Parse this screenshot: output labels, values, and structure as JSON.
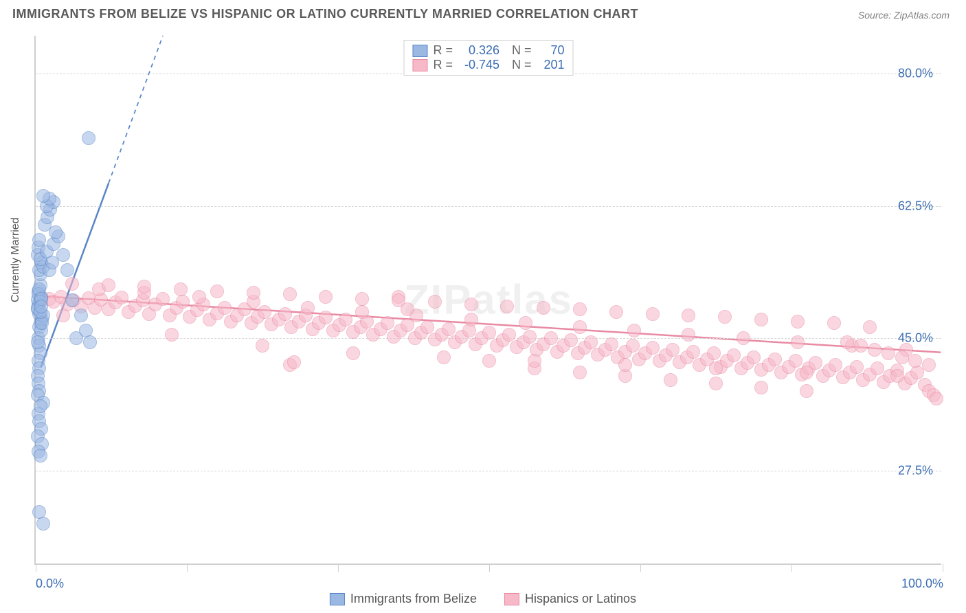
{
  "title": "IMMIGRANTS FROM BELIZE VS HISPANIC OR LATINO CURRENTLY MARRIED CORRELATION CHART",
  "source": "Source: ZipAtlas.com",
  "watermark": "ZIPatlas",
  "ylabel": "Currently Married",
  "chart": {
    "type": "scatter",
    "background_color": "#ffffff",
    "grid_color": "#d8d8d8",
    "axis_color": "#cfcfcf",
    "tick_color": "#3b6db4",
    "xlim": [
      0,
      100
    ],
    "ylim": [
      15,
      85
    ],
    "xticks": [
      0,
      16.67,
      33.33,
      50,
      66.67,
      83.33,
      100
    ],
    "xtick_labels_shown": {
      "0": "0.0%",
      "100": "100.0%"
    },
    "yticks": [
      27.5,
      45.0,
      62.5,
      80.0
    ],
    "ytick_labels": [
      "27.5%",
      "45.0%",
      "62.5%",
      "80.0%"
    ],
    "marker_radius": 10,
    "marker_opacity": 0.55,
    "marker_stroke_width": 1.5
  },
  "series": {
    "belize": {
      "label": "Immigrants from Belize",
      "fill_color": "#9bb8e3",
      "stroke_color": "#5a86c7",
      "R": "0.326",
      "N": "70",
      "trend": {
        "x1": 0.5,
        "y1": 41,
        "x2": 14,
        "y2": 85,
        "dash_from_x": 8,
        "width": 2.5
      },
      "points": [
        [
          0.3,
          49.5
        ],
        [
          0.4,
          48.2
        ],
        [
          0.2,
          50.1
        ],
        [
          0.5,
          47.0
        ],
        [
          0.3,
          51.2
        ],
        [
          0.4,
          46.5
        ],
        [
          0.2,
          48.8
        ],
        [
          0.6,
          50.5
        ],
        [
          0.3,
          45.0
        ],
        [
          0.5,
          52.0
        ],
        [
          0.4,
          44.0
        ],
        [
          0.2,
          49.0
        ],
        [
          0.7,
          47.5
        ],
        [
          0.3,
          50.8
        ],
        [
          0.5,
          43.0
        ],
        [
          0.4,
          51.5
        ],
        [
          0.6,
          46.0
        ],
        [
          0.2,
          44.5
        ],
        [
          0.8,
          48.0
        ],
        [
          0.3,
          42.0
        ],
        [
          0.5,
          49.8
        ],
        [
          0.4,
          41.0
        ],
        [
          0.6,
          50.2
        ],
        [
          0.2,
          40.0
        ],
        [
          0.7,
          47.0
        ],
        [
          0.3,
          39.0
        ],
        [
          0.5,
          48.5
        ],
        [
          0.4,
          38.0
        ],
        [
          0.6,
          49.2
        ],
        [
          0.2,
          37.5
        ],
        [
          0.8,
          36.5
        ],
        [
          0.3,
          35.0
        ],
        [
          0.5,
          36.0
        ],
        [
          0.4,
          34.0
        ],
        [
          0.6,
          33.0
        ],
        [
          0.2,
          32.0
        ],
        [
          0.7,
          31.0
        ],
        [
          0.3,
          30.0
        ],
        [
          0.5,
          53.5
        ],
        [
          0.4,
          54.0
        ],
        [
          0.6,
          55.0
        ],
        [
          0.2,
          56.0
        ],
        [
          0.8,
          54.5
        ],
        [
          0.3,
          57.0
        ],
        [
          0.5,
          55.5
        ],
        [
          0.4,
          58.0
        ],
        [
          1.2,
          56.5
        ],
        [
          1.5,
          54.0
        ],
        [
          2.0,
          57.5
        ],
        [
          1.8,
          55.0
        ],
        [
          2.5,
          58.5
        ],
        [
          3.0,
          56.0
        ],
        [
          2.2,
          59.0
        ],
        [
          1.0,
          60.0
        ],
        [
          1.3,
          61.0
        ],
        [
          1.6,
          62.0
        ],
        [
          2.0,
          63.0
        ],
        [
          1.2,
          62.5
        ],
        [
          1.5,
          63.5
        ],
        [
          0.8,
          63.8
        ],
        [
          3.5,
          54.0
        ],
        [
          4.0,
          50.0
        ],
        [
          4.5,
          45.0
        ],
        [
          5.0,
          48.0
        ],
        [
          5.5,
          46.0
        ],
        [
          6.0,
          44.5
        ],
        [
          5.8,
          71.5
        ],
        [
          0.4,
          22.0
        ],
        [
          0.8,
          20.5
        ],
        [
          0.5,
          29.5
        ]
      ]
    },
    "hispanic": {
      "label": "Hispanics or Latinos",
      "fill_color": "#f7b8c8",
      "stroke_color": "#e88aa3",
      "R": "-0.745",
      "N": "201",
      "trend": {
        "x1": 0,
        "y1": 50.5,
        "x2": 100,
        "y2": 43.0,
        "width": 2.5
      },
      "points": [
        [
          1.5,
          50.2
        ],
        [
          2.0,
          49.8
        ],
        [
          2.8,
          50.5
        ],
        [
          3.5,
          49.5
        ],
        [
          4.2,
          50.0
        ],
        [
          5.0,
          49.2
        ],
        [
          5.8,
          50.3
        ],
        [
          6.5,
          49.0
        ],
        [
          7.2,
          50.1
        ],
        [
          8.0,
          48.8
        ],
        [
          8.8,
          49.7
        ],
        [
          9.5,
          50.4
        ],
        [
          10.2,
          48.5
        ],
        [
          11.0,
          49.3
        ],
        [
          11.8,
          50.0
        ],
        [
          12.5,
          48.2
        ],
        [
          13.2,
          49.5
        ],
        [
          14.0,
          50.2
        ],
        [
          14.8,
          48.0
        ],
        [
          15.5,
          49.0
        ],
        [
          16.2,
          49.8
        ],
        [
          17.0,
          47.8
        ],
        [
          17.8,
          48.7
        ],
        [
          18.5,
          49.5
        ],
        [
          19.2,
          47.5
        ],
        [
          20.0,
          48.3
        ],
        [
          20.8,
          49.0
        ],
        [
          21.5,
          47.2
        ],
        [
          22.2,
          48.0
        ],
        [
          23.0,
          48.8
        ],
        [
          23.8,
          47.0
        ],
        [
          24.5,
          47.8
        ],
        [
          25.2,
          48.5
        ],
        [
          26.0,
          46.8
        ],
        [
          26.8,
          47.5
        ],
        [
          27.5,
          48.2
        ],
        [
          28.2,
          46.5
        ],
        [
          29.0,
          47.2
        ],
        [
          29.8,
          48.0
        ],
        [
          30.5,
          46.2
        ],
        [
          31.2,
          47.0
        ],
        [
          32.0,
          47.7
        ],
        [
          32.8,
          46.0
        ],
        [
          33.5,
          46.7
        ],
        [
          34.2,
          47.5
        ],
        [
          35.0,
          45.8
        ],
        [
          35.8,
          46.5
        ],
        [
          36.5,
          47.2
        ],
        [
          37.2,
          45.5
        ],
        [
          38.0,
          46.2
        ],
        [
          38.8,
          47.0
        ],
        [
          39.5,
          45.2
        ],
        [
          40.2,
          46.0
        ],
        [
          41.0,
          46.7
        ],
        [
          41.8,
          45.0
        ],
        [
          42.5,
          45.7
        ],
        [
          43.2,
          46.5
        ],
        [
          44.0,
          44.8
        ],
        [
          44.8,
          45.5
        ],
        [
          45.5,
          46.2
        ],
        [
          46.2,
          44.5
        ],
        [
          47.0,
          45.2
        ],
        [
          47.8,
          46.0
        ],
        [
          48.5,
          44.2
        ],
        [
          49.2,
          45.0
        ],
        [
          50.0,
          45.7
        ],
        [
          50.8,
          44.0
        ],
        [
          51.5,
          44.7
        ],
        [
          52.2,
          45.5
        ],
        [
          53.0,
          43.8
        ],
        [
          53.8,
          44.5
        ],
        [
          54.5,
          45.2
        ],
        [
          55.2,
          43.5
        ],
        [
          56.0,
          44.2
        ],
        [
          56.8,
          45.0
        ],
        [
          57.5,
          43.2
        ],
        [
          58.2,
          44.0
        ],
        [
          59.0,
          44.7
        ],
        [
          59.8,
          43.0
        ],
        [
          60.5,
          43.7
        ],
        [
          61.2,
          44.5
        ],
        [
          62.0,
          42.8
        ],
        [
          62.8,
          43.5
        ],
        [
          63.5,
          44.2
        ],
        [
          64.2,
          42.5
        ],
        [
          65.0,
          43.2
        ],
        [
          65.8,
          44.0
        ],
        [
          66.5,
          42.2
        ],
        [
          67.2,
          43.0
        ],
        [
          68.0,
          43.7
        ],
        [
          68.8,
          42.0
        ],
        [
          69.5,
          42.7
        ],
        [
          70.2,
          43.5
        ],
        [
          71.0,
          41.8
        ],
        [
          71.8,
          42.5
        ],
        [
          72.5,
          43.2
        ],
        [
          73.2,
          41.5
        ],
        [
          74.0,
          42.2
        ],
        [
          74.8,
          43.0
        ],
        [
          75.5,
          41.2
        ],
        [
          76.2,
          42.0
        ],
        [
          77.0,
          42.7
        ],
        [
          77.8,
          41.0
        ],
        [
          78.5,
          41.7
        ],
        [
          79.2,
          42.5
        ],
        [
          80.0,
          40.8
        ],
        [
          80.8,
          41.5
        ],
        [
          81.5,
          42.2
        ],
        [
          82.2,
          40.5
        ],
        [
          83.0,
          41.2
        ],
        [
          83.8,
          42.0
        ],
        [
          84.5,
          40.2
        ],
        [
          85.2,
          41.0
        ],
        [
          86.0,
          41.7
        ],
        [
          86.8,
          40.0
        ],
        [
          87.5,
          40.7
        ],
        [
          88.2,
          41.5
        ],
        [
          89.0,
          39.8
        ],
        [
          89.8,
          40.5
        ],
        [
          90.5,
          41.2
        ],
        [
          91.2,
          39.5
        ],
        [
          92.0,
          40.2
        ],
        [
          92.8,
          41.0
        ],
        [
          93.5,
          39.2
        ],
        [
          94.2,
          40.0
        ],
        [
          95.0,
          40.7
        ],
        [
          95.8,
          39.0
        ],
        [
          96.5,
          39.7
        ],
        [
          97.2,
          40.5
        ],
        [
          98.0,
          38.8
        ],
        [
          98.5,
          38.0
        ],
        [
          99.0,
          37.5
        ],
        [
          99.3,
          37.0
        ],
        [
          3.0,
          48.0
        ],
        [
          7.0,
          51.5
        ],
        [
          12.0,
          51.0
        ],
        [
          18.0,
          50.5
        ],
        [
          24.0,
          49.8
        ],
        [
          30.0,
          49.0
        ],
        [
          36.0,
          48.5
        ],
        [
          42.0,
          48.0
        ],
        [
          48.0,
          47.5
        ],
        [
          54.0,
          47.0
        ],
        [
          60.0,
          46.5
        ],
        [
          66.0,
          46.0
        ],
        [
          72.0,
          45.5
        ],
        [
          78.0,
          45.0
        ],
        [
          84.0,
          44.5
        ],
        [
          90.0,
          44.0
        ],
        [
          96.0,
          43.5
        ],
        [
          28.0,
          41.5
        ],
        [
          28.5,
          41.8
        ],
        [
          40.0,
          50.5
        ],
        [
          50.0,
          42.0
        ],
        [
          55.0,
          41.0
        ],
        [
          60.0,
          40.5
        ],
        [
          65.0,
          40.0
        ],
        [
          70.0,
          39.5
        ],
        [
          75.0,
          39.0
        ],
        [
          80.0,
          38.5
        ],
        [
          85.0,
          38.0
        ],
        [
          92.0,
          46.5
        ],
        [
          88.0,
          47.0
        ],
        [
          84.0,
          47.2
        ],
        [
          80.0,
          47.5
        ],
        [
          76.0,
          47.8
        ],
        [
          72.0,
          48.0
        ],
        [
          68.0,
          48.2
        ],
        [
          64.0,
          48.5
        ],
        [
          60.0,
          48.8
        ],
        [
          56.0,
          49.0
        ],
        [
          52.0,
          49.2
        ],
        [
          48.0,
          49.5
        ],
        [
          44.0,
          49.8
        ],
        [
          40.0,
          50.0
        ],
        [
          36.0,
          50.2
        ],
        [
          32.0,
          50.5
        ],
        [
          28.0,
          50.8
        ],
        [
          24.0,
          51.0
        ],
        [
          20.0,
          51.2
        ],
        [
          16.0,
          51.5
        ],
        [
          12.0,
          51.8
        ],
        [
          8.0,
          52.0
        ],
        [
          4.0,
          52.2
        ],
        [
          15.0,
          45.5
        ],
        [
          25.0,
          44.0
        ],
        [
          35.0,
          43.0
        ],
        [
          45.0,
          42.5
        ],
        [
          55.0,
          42.0
        ],
        [
          65.0,
          41.5
        ],
        [
          75.0,
          41.0
        ],
        [
          85.0,
          40.5
        ],
        [
          95.0,
          40.0
        ],
        [
          98.5,
          41.5
        ],
        [
          97.0,
          42.0
        ],
        [
          95.5,
          42.5
        ],
        [
          94.0,
          43.0
        ],
        [
          92.5,
          43.5
        ],
        [
          91.0,
          44.0
        ],
        [
          89.5,
          44.5
        ],
        [
          41.0,
          48.8
        ]
      ]
    }
  },
  "stats_labels": {
    "R": "R =",
    "N": "N ="
  }
}
